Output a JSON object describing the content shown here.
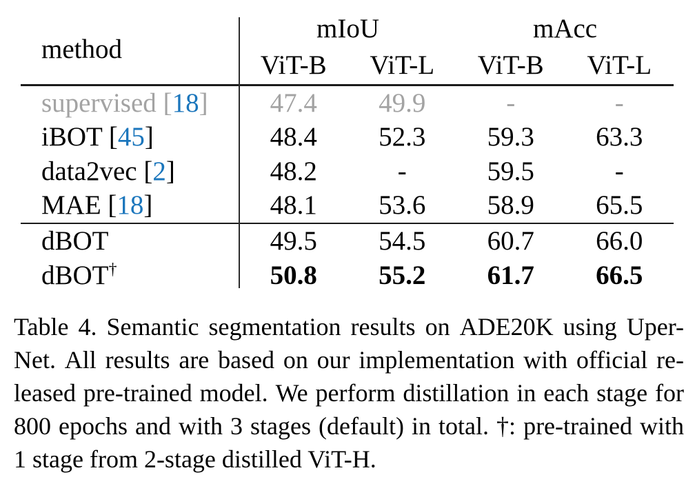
{
  "colors": {
    "citation": "#1b76bc",
    "muted_text": "#a3a3a3",
    "rule": "#1b1b1b"
  },
  "table": {
    "method_header": "method",
    "group_headers": [
      "mIoU",
      "mAcc"
    ],
    "sub_headers": [
      "ViT-B",
      "ViT-L",
      "ViT-B",
      "ViT-L"
    ],
    "sections": [
      {
        "rows": [
          {
            "method": "supervised",
            "citation": "18",
            "values": [
              "47.4",
              "49.9",
              "-",
              "-"
            ],
            "muted": true
          },
          {
            "method": "iBOT",
            "citation": "45",
            "values": [
              "48.4",
              "52.3",
              "59.3",
              "63.3"
            ]
          },
          {
            "method": "data2vec",
            "citation": "2",
            "values": [
              "48.2",
              "-",
              "59.5",
              "-"
            ]
          },
          {
            "method": "MAE",
            "citation": "18",
            "values": [
              "48.1",
              "53.6",
              "58.9",
              "65.5"
            ]
          }
        ]
      },
      {
        "rows": [
          {
            "method": "dBOT",
            "values": [
              "49.5",
              "54.5",
              "60.7",
              "66.0"
            ]
          },
          {
            "method": "dBOT",
            "superscript": "†",
            "values": [
              "50.8",
              "55.2",
              "61.7",
              "66.5"
            ],
            "bold_values": true
          }
        ]
      }
    ]
  },
  "caption": {
    "lines": [
      {
        "text": "Table 4. Semantic segmentation results on ADE20K using Uper-",
        "justify": true
      },
      {
        "text": "Net. All results are based on our implementation with official re-",
        "justify": true
      },
      {
        "text": "leased pre-trained model. We perform distillation in each stage for",
        "justify": true
      },
      {
        "text": "800 epochs and with 3 stages (default) in total. †: pre-trained with",
        "justify": true
      },
      {
        "text": "1 stage from 2-stage distilled ViT-H.",
        "justify": false
      }
    ]
  }
}
